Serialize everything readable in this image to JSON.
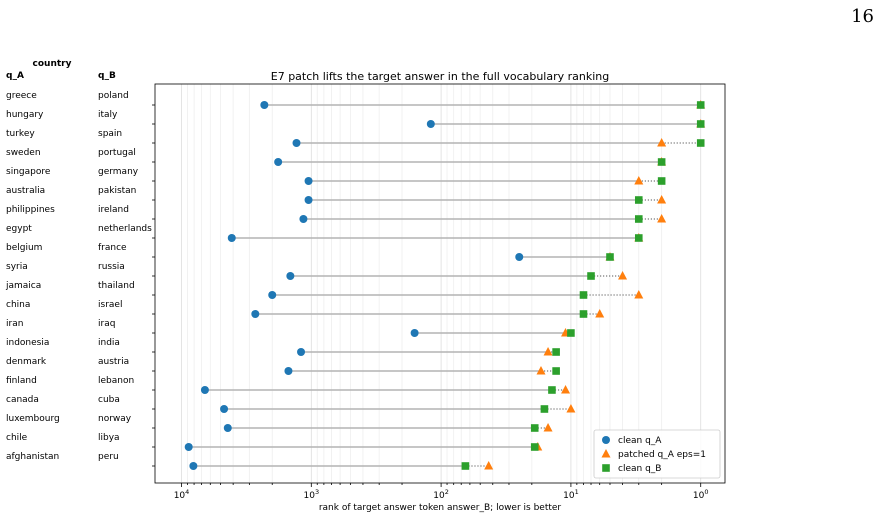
{
  "page_number": "16",
  "chart_data": {
    "type": "scatter",
    "title": "E7 patch lifts the target answer in the full vocabulary ranking",
    "xlabel": "rank of target answer token answer_B; lower is better",
    "x_scale": "log",
    "x_inverted": true,
    "xlim": [
      16000,
      0.65
    ],
    "xticks": [
      "10^4",
      "10^3",
      "10^2",
      "10^1",
      "10^0"
    ],
    "grid": "x",
    "legend_position": "bottom-right",
    "table_header": {
      "group": "country",
      "col_a": "q_A",
      "col_b": "q_B"
    },
    "rows": [
      {
        "q_A": "greece",
        "q_B": "poland"
      },
      {
        "q_A": "hungary",
        "q_B": "italy"
      },
      {
        "q_A": "turkey",
        "q_B": "spain"
      },
      {
        "q_A": "sweden",
        "q_B": "portugal"
      },
      {
        "q_A": "singapore",
        "q_B": "germany"
      },
      {
        "q_A": "australia",
        "q_B": "pakistan"
      },
      {
        "q_A": "philippines",
        "q_B": "ireland"
      },
      {
        "q_A": "egypt",
        "q_B": "netherlands"
      },
      {
        "q_A": "belgium",
        "q_B": "france"
      },
      {
        "q_A": "syria",
        "q_B": "russia"
      },
      {
        "q_A": "jamaica",
        "q_B": "thailand"
      },
      {
        "q_A": "china",
        "q_B": "israel"
      },
      {
        "q_A": "iran",
        "q_B": "iraq"
      },
      {
        "q_A": "indonesia",
        "q_B": "india"
      },
      {
        "q_A": "denmark",
        "q_B": "austria"
      },
      {
        "q_A": "finland",
        "q_B": "lebanon"
      },
      {
        "q_A": "canada",
        "q_B": "cuba"
      },
      {
        "q_A": "luxembourg",
        "q_B": "norway"
      },
      {
        "q_A": "chile",
        "q_B": "libya"
      },
      {
        "q_A": "afghanistan",
        "q_B": "peru"
      }
    ],
    "series": [
      {
        "name": "clean q_A",
        "marker": "circle",
        "color": "#1f77b4",
        "values": [
          2300,
          120,
          1300,
          1800,
          1050,
          1050,
          1150,
          4100,
          25,
          1450,
          2000,
          2700,
          160,
          1200,
          1500,
          6600,
          4700,
          4400,
          8800,
          8100
        ]
      },
      {
        "name": "patched q_A eps=1",
        "marker": "triangle",
        "color": "#ff7f0e",
        "values": [
          1,
          1,
          2,
          2,
          3,
          2,
          2,
          3,
          5,
          4,
          3,
          6,
          11,
          15,
          17,
          11,
          10,
          15,
          18,
          43
        ]
      },
      {
        "name": "clean q_B",
        "marker": "square",
        "color": "#2ca02c",
        "values": [
          1,
          1,
          1,
          2,
          2,
          3,
          3,
          3,
          5,
          7,
          8,
          8,
          10,
          13,
          13,
          14,
          16,
          19,
          19,
          65
        ]
      }
    ]
  }
}
